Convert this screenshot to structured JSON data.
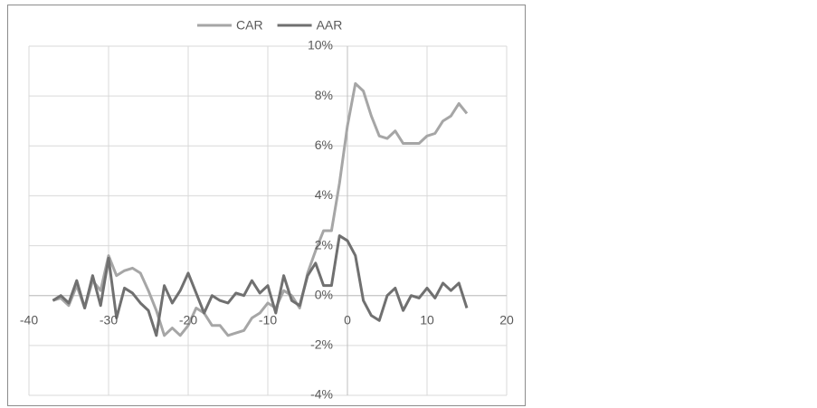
{
  "chart_data": {
    "type": "line",
    "x": [
      -37,
      -36,
      -35,
      -34,
      -33,
      -32,
      -31,
      -30,
      -29,
      -28,
      -27,
      -26,
      -25,
      -24,
      -23,
      -22,
      -21,
      -20,
      -19,
      -18,
      -17,
      -16,
      -15,
      -14,
      -13,
      -12,
      -11,
      -10,
      -9,
      -8,
      -7,
      -6,
      -5,
      -4,
      -3,
      -2,
      -1,
      0,
      1,
      2,
      3,
      4,
      5,
      6,
      7,
      8,
      9,
      10,
      11,
      12,
      13,
      14,
      15
    ],
    "series": [
      {
        "name": "CAR",
        "color": "#a6a6a6",
        "values": [
          -0.2,
          -0.1,
          -0.4,
          0.4,
          -0.5,
          0.6,
          0.2,
          1.6,
          0.8,
          1.0,
          1.1,
          0.9,
          0.2,
          -0.6,
          -1.6,
          -1.3,
          -1.6,
          -1.2,
          -0.5,
          -0.7,
          -1.2,
          -1.2,
          -1.6,
          -1.5,
          -1.4,
          -0.9,
          -0.7,
          -0.3,
          -0.5,
          0.2,
          0.0,
          -0.5,
          0.9,
          1.8,
          2.6,
          2.6,
          4.5,
          6.8,
          8.5,
          8.2,
          7.2,
          6.4,
          6.3,
          6.6,
          6.1,
          6.1,
          6.1,
          6.4,
          6.5,
          7.0,
          7.2,
          7.7,
          7.3
        ]
      },
      {
        "name": "AAR",
        "color": "#707070",
        "values": [
          -0.2,
          0.0,
          -0.3,
          0.6,
          -0.5,
          0.8,
          -0.4,
          1.5,
          -0.9,
          0.3,
          0.1,
          -0.3,
          -0.6,
          -1.6,
          0.4,
          -0.3,
          0.2,
          0.9,
          0.1,
          -0.7,
          0.0,
          -0.2,
          -0.3,
          0.1,
          0.0,
          0.6,
          0.1,
          0.4,
          -0.7,
          0.8,
          -0.2,
          -0.4,
          0.8,
          1.3,
          0.4,
          0.4,
          2.4,
          2.2,
          1.6,
          -0.2,
          -0.8,
          -1.0,
          0.0,
          0.3,
          -0.6,
          0.0,
          -0.1,
          0.3,
          -0.1,
          0.5,
          0.2,
          0.5,
          -0.5
        ]
      }
    ],
    "xlim": [
      -40,
      20
    ],
    "xticks": [
      -40,
      -30,
      -20,
      -10,
      0,
      10,
      20
    ],
    "ylim": [
      -4,
      10
    ],
    "yticks": [
      {
        "value": -4,
        "label": "-4%"
      },
      {
        "value": -2,
        "label": "-2%"
      },
      {
        "value": 0,
        "label": "0%"
      },
      {
        "value": 2,
        "label": "2%"
      },
      {
        "value": 4,
        "label": "4%"
      },
      {
        "value": 6,
        "label": "6%"
      },
      {
        "value": 8,
        "label": "8%"
      },
      {
        "value": 10,
        "label": "10%"
      }
    ],
    "grid": true,
    "legend": "top"
  }
}
